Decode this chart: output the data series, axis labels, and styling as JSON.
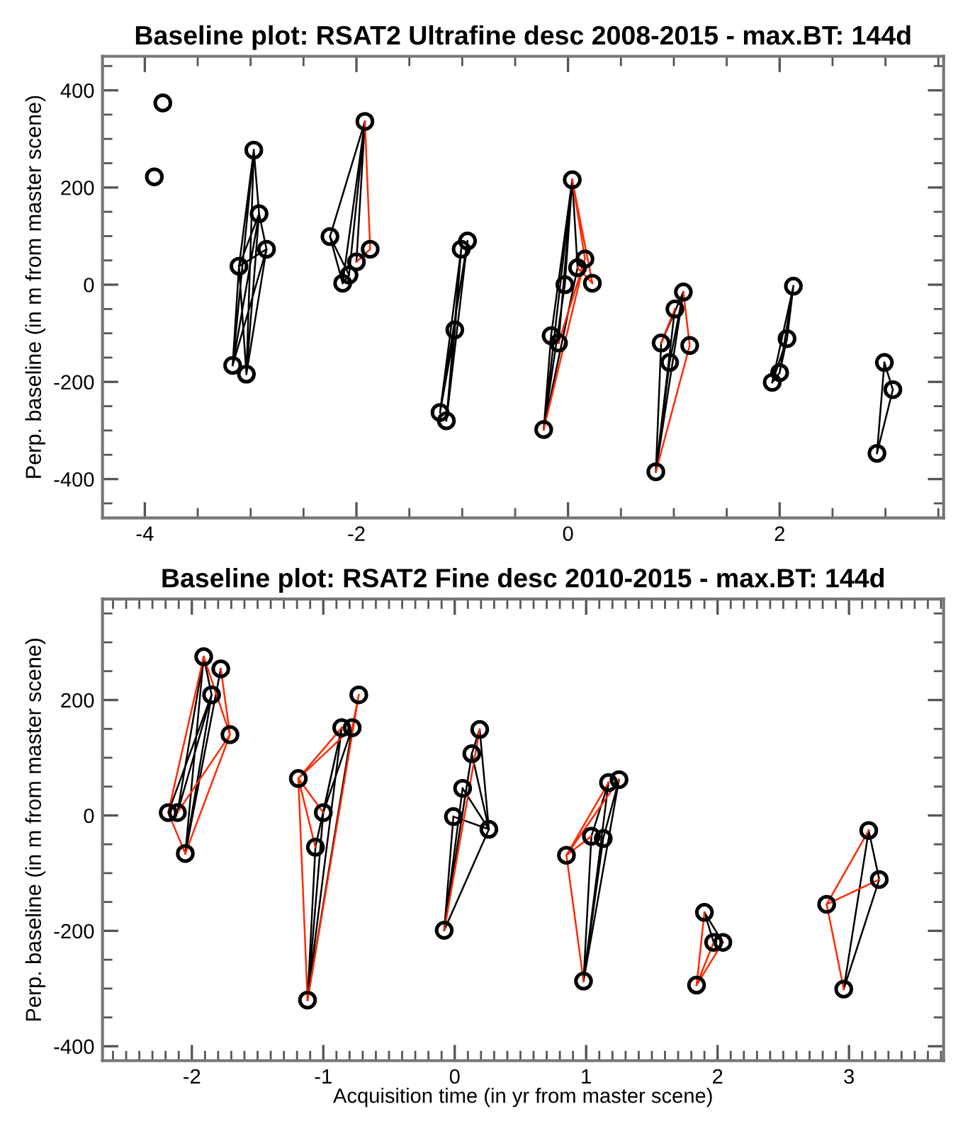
{
  "chart_data": [
    {
      "type": "scatter",
      "title": "Baseline plot: RSAT2 Ultrafine desc 2008-2015 - max.BT: 144d",
      "ylabel": "Perp. baseline (in m from master scene)",
      "grid": false,
      "legend": false,
      "xlim": [
        -4.4,
        3.55
      ],
      "ylim": [
        -480,
        470
      ],
      "xticks": [
        -4,
        {
          "value": -3.5,
          "label": null
        },
        {
          "value": -3,
          "label": null
        },
        {
          "value": -2.5,
          "label": null
        },
        -2,
        {
          "value": -1.5,
          "label": null
        },
        {
          "value": -1,
          "label": null
        },
        {
          "value": -0.5,
          "label": null
        },
        0,
        {
          "value": 0.5,
          "label": null
        },
        {
          "value": 1,
          "label": null
        },
        {
          "value": 1.5,
          "label": null
        },
        2,
        {
          "value": 2.5,
          "label": null
        },
        {
          "value": 3,
          "label": null
        },
        {
          "value": 3.5,
          "label": null
        }
      ],
      "yticks": [
        {
          "value": -450,
          "label": null
        },
        -400,
        {
          "value": -350,
          "label": null
        },
        {
          "value": -300,
          "label": null
        },
        {
          "value": -250,
          "label": null
        },
        -200,
        {
          "value": -150,
          "label": null
        },
        {
          "value": -100,
          "label": null
        },
        {
          "value": -50,
          "label": null
        },
        0,
        {
          "value": 50,
          "label": null
        },
        {
          "value": 100,
          "label": null
        },
        {
          "value": 150,
          "label": null
        },
        200,
        {
          "value": 250,
          "label": null
        },
        {
          "value": 300,
          "label": null
        },
        {
          "value": 350,
          "label": null
        },
        400,
        {
          "value": 450,
          "label": null
        }
      ],
      "series": [
        {
          "type": "line",
          "color": "#000000",
          "x": [
            -3.17,
            -2.97,
            null,
            -3.17,
            -2.92,
            null,
            -3.17,
            -2.85,
            null,
            -3.04,
            -2.97,
            null,
            -3.04,
            -2.92,
            null,
            -3.04,
            -2.85,
            null,
            -3.11,
            -2.97,
            null,
            -3.11,
            -2.92,
            null,
            -3.11,
            -2.85,
            null,
            -2.97,
            -2.92,
            null,
            -2.92,
            -2.85,
            null,
            -3.11,
            -3.17,
            null,
            -3.11,
            -3.04,
            null,
            -1.92,
            -2.25,
            null,
            -1.92,
            -2.0,
            null,
            -1.92,
            -2.07,
            null,
            -1.92,
            -2.13,
            null,
            -2.25,
            -2.07,
            null,
            -2.25,
            -2.13,
            null,
            -2.07,
            -2.13,
            null,
            -1.21,
            -1.07,
            null,
            -1.21,
            -1.01,
            null,
            -1.21,
            -0.95,
            null,
            -1.15,
            -1.07,
            null,
            -1.15,
            -1.01,
            null,
            -1.15,
            -0.95,
            null,
            -1.07,
            -1.01,
            null,
            -0.23,
            0.04,
            null,
            -0.23,
            -0.03,
            null,
            -0.23,
            0.09,
            null,
            -0.23,
            -0.16,
            null,
            -0.16,
            0.04,
            null,
            -0.09,
            0.04,
            null,
            -0.03,
            0.04,
            null,
            0.09,
            0.04,
            null,
            -0.16,
            -0.09,
            null,
            0.83,
            1.09,
            null,
            0.83,
            1.01,
            null,
            0.83,
            0.88,
            null,
            0.83,
            0.96,
            null,
            0.88,
            1.09,
            null,
            0.96,
            1.09,
            null,
            2.13,
            2.07,
            null,
            2.13,
            2.0,
            null,
            2.13,
            1.93,
            null,
            2.07,
            2.0,
            null,
            2.07,
            1.93,
            null,
            2.0,
            1.93,
            null,
            2.99,
            2.92,
            null,
            3.07,
            2.92,
            null,
            2.99,
            3.07
          ],
          "values": [
            -166,
            277,
            null,
            -166,
            146,
            null,
            -166,
            73,
            null,
            -184,
            277,
            null,
            -184,
            146,
            null,
            -184,
            73,
            null,
            38,
            277,
            null,
            38,
            146,
            null,
            38,
            73,
            null,
            277,
            146,
            null,
            146,
            73,
            null,
            38,
            -166,
            null,
            38,
            -184,
            null,
            336,
            99,
            null,
            336,
            47,
            null,
            336,
            20,
            null,
            336,
            3,
            null,
            99,
            20,
            null,
            99,
            3,
            null,
            20,
            3,
            null,
            -263,
            -93,
            null,
            -263,
            73,
            null,
            -263,
            90,
            null,
            -280,
            -93,
            null,
            -280,
            73,
            null,
            -280,
            90,
            null,
            -93,
            73,
            null,
            -298,
            216,
            null,
            -298,
            0,
            null,
            -298,
            35,
            null,
            -298,
            -105,
            null,
            -105,
            216,
            null,
            -120,
            216,
            null,
            0,
            216,
            null,
            35,
            216,
            null,
            -105,
            -120,
            null,
            -385,
            -15,
            null,
            -385,
            -50,
            null,
            -385,
            -120,
            null,
            -385,
            -160,
            null,
            -120,
            -15,
            null,
            -160,
            -15,
            null,
            -3,
            -111,
            null,
            -3,
            -181,
            null,
            -3,
            -201,
            null,
            -111,
            -181,
            null,
            -111,
            -201,
            null,
            -181,
            -201,
            null,
            -160,
            -347,
            null,
            -216,
            -347,
            null,
            -160,
            -216
          ]
        },
        {
          "type": "line",
          "color": "#ff2a00",
          "x": [
            -1.92,
            -1.87,
            -2.0,
            null,
            0.04,
            0.16,
            null,
            0.04,
            0.23,
            null,
            -0.23,
            0.16,
            null,
            0.09,
            0.23,
            null,
            -0.09,
            0.16,
            null,
            0.83,
            1.15,
            1.09,
            null,
            1.01,
            0.88
          ],
          "values": [
            336,
            73,
            47,
            null,
            216,
            53,
            null,
            216,
            3,
            null,
            -298,
            53,
            null,
            35,
            3,
            null,
            -120,
            53,
            null,
            -385,
            -125,
            -15,
            null,
            -50,
            -120
          ]
        },
        {
          "marker": "circle",
          "color": "#000000",
          "x": [
            -3.83,
            -3.91,
            -2.97,
            -2.92,
            -2.85,
            -3.11,
            -3.17,
            -3.04,
            -1.92,
            -2.25,
            -1.87,
            -2.0,
            -2.07,
            -2.13,
            -1.21,
            -1.15,
            -1.07,
            -1.01,
            -0.95,
            0.04,
            -0.23,
            -0.03,
            -0.16,
            -0.09,
            0.09,
            0.16,
            0.23,
            1.09,
            1.01,
            0.88,
            0.96,
            1.15,
            0.83,
            2.13,
            2.07,
            2.0,
            1.93,
            2.99,
            3.07,
            2.92
          ],
          "values": [
            374,
            222,
            277,
            146,
            73,
            38,
            -166,
            -184,
            336,
            99,
            73,
            47,
            20,
            3,
            -263,
            -280,
            -93,
            73,
            90,
            216,
            -298,
            0,
            -105,
            -120,
            35,
            53,
            3,
            -15,
            -50,
            -120,
            -160,
            -125,
            -385,
            -3,
            -111,
            -181,
            -201,
            -160,
            -216,
            -347
          ]
        }
      ]
    },
    {
      "type": "scatter",
      "title": "Baseline plot: RSAT2 Fine desc 2010-2015 - max.BT: 144d",
      "xlabel": "Acquisition time (in yr from master scene)",
      "ylabel": "Perp. baseline (in m from master scene)",
      "grid": false,
      "legend": false,
      "xlim": [
        -2.68,
        3.72
      ],
      "ylim": [
        -425,
        375
      ],
      "xticks": [
        {
          "value": -2.6,
          "label": null
        },
        {
          "value": -2.5,
          "label": null
        },
        {
          "value": -2.4,
          "label": null
        },
        {
          "value": -2.3,
          "label": null
        },
        {
          "value": -2.2,
          "label": null
        },
        {
          "value": -2.1,
          "label": null
        },
        -2,
        {
          "value": -1.9,
          "label": null
        },
        {
          "value": -1.8,
          "label": null
        },
        {
          "value": -1.7,
          "label": null
        },
        {
          "value": -1.6,
          "label": null
        },
        {
          "value": -1.5,
          "label": null
        },
        {
          "value": -1.4,
          "label": null
        },
        {
          "value": -1.3,
          "label": null
        },
        {
          "value": -1.2,
          "label": null
        },
        {
          "value": -1.1,
          "label": null
        },
        -1,
        {
          "value": -0.9,
          "label": null
        },
        {
          "value": -0.8,
          "label": null
        },
        {
          "value": -0.7,
          "label": null
        },
        {
          "value": -0.6,
          "label": null
        },
        {
          "value": -0.5,
          "label": null
        },
        {
          "value": -0.4,
          "label": null
        },
        {
          "value": -0.3,
          "label": null
        },
        {
          "value": -0.2,
          "label": null
        },
        {
          "value": -0.1,
          "label": null
        },
        0,
        {
          "value": 0.1,
          "label": null
        },
        {
          "value": 0.2,
          "label": null
        },
        {
          "value": 0.3,
          "label": null
        },
        {
          "value": 0.4,
          "label": null
        },
        {
          "value": 0.5,
          "label": null
        },
        {
          "value": 0.6,
          "label": null
        },
        {
          "value": 0.7,
          "label": null
        },
        {
          "value": 0.8,
          "label": null
        },
        {
          "value": 0.9,
          "label": null
        },
        1,
        {
          "value": 1.1,
          "label": null
        },
        {
          "value": 1.2,
          "label": null
        },
        {
          "value": 1.3,
          "label": null
        },
        {
          "value": 1.4,
          "label": null
        },
        {
          "value": 1.5,
          "label": null
        },
        {
          "value": 1.6,
          "label": null
        },
        {
          "value": 1.7,
          "label": null
        },
        {
          "value": 1.8,
          "label": null
        },
        {
          "value": 1.9,
          "label": null
        },
        2,
        {
          "value": 2.1,
          "label": null
        },
        {
          "value": 2.2,
          "label": null
        },
        {
          "value": 2.3,
          "label": null
        },
        {
          "value": 2.4,
          "label": null
        },
        {
          "value": 2.5,
          "label": null
        },
        {
          "value": 2.6,
          "label": null
        },
        {
          "value": 2.7,
          "label": null
        },
        {
          "value": 2.8,
          "label": null
        },
        {
          "value": 2.9,
          "label": null
        },
        3,
        {
          "value": 3.1,
          "label": null
        },
        {
          "value": 3.2,
          "label": null
        },
        {
          "value": 3.3,
          "label": null
        },
        {
          "value": 3.4,
          "label": null
        },
        {
          "value": 3.5,
          "label": null
        },
        {
          "value": 3.6,
          "label": null
        },
        {
          "value": 3.7,
          "label": null
        }
      ],
      "yticks": [
        -400,
        {
          "value": -350,
          "label": null
        },
        {
          "value": -300,
          "label": null
        },
        {
          "value": -250,
          "label": null
        },
        -200,
        {
          "value": -150,
          "label": null
        },
        {
          "value": -100,
          "label": null
        },
        {
          "value": -50,
          "label": null
        },
        0,
        {
          "value": 50,
          "label": null
        },
        {
          "value": 100,
          "label": null
        },
        {
          "value": 150,
          "label": null
        },
        200,
        {
          "value": 250,
          "label": null
        },
        {
          "value": 300,
          "label": null
        },
        {
          "value": 350,
          "label": null
        }
      ],
      "series": [
        {
          "type": "line",
          "color": "#000000",
          "x": [
            -2.05,
            -1.91,
            null,
            -2.05,
            -1.78,
            null,
            -2.05,
            -1.85,
            null,
            -2.11,
            -1.91,
            null,
            -2.11,
            -1.85,
            null,
            -2.18,
            -1.85,
            null,
            -1.91,
            -1.85,
            null,
            -1.12,
            -0.86,
            null,
            -1.12,
            -0.78,
            null,
            -1.12,
            -1.0,
            null,
            -1.12,
            -1.06,
            null,
            -1.0,
            -0.86,
            null,
            -1.0,
            -0.78,
            null,
            -1.06,
            -0.86,
            null,
            -0.08,
            0.13,
            null,
            -0.08,
            0.06,
            null,
            -0.08,
            -0.01,
            null,
            -0.08,
            0.26,
            null,
            0.19,
            0.26,
            null,
            0.13,
            0.26,
            null,
            -0.01,
            0.26,
            null,
            0.06,
            0.26,
            null,
            0.19,
            0.13,
            null,
            0.98,
            1.17,
            null,
            0.98,
            1.25,
            null,
            0.98,
            1.04,
            null,
            0.98,
            1.13,
            null,
            1.04,
            1.17,
            null,
            1.13,
            1.25,
            null,
            1.9,
            1.97,
            null,
            1.9,
            2.04,
            null,
            2.96,
            3.15,
            null,
            2.96,
            3.23,
            null,
            3.15,
            3.23
          ],
          "values": [
            -66,
            275,
            null,
            -66,
            254,
            null,
            -66,
            209,
            null,
            5,
            275,
            null,
            5,
            209,
            null,
            5,
            209,
            null,
            275,
            209,
            null,
            -320,
            152,
            null,
            -320,
            152,
            null,
            -320,
            5,
            null,
            -320,
            -55,
            null,
            5,
            152,
            null,
            5,
            152,
            null,
            -55,
            152,
            null,
            -199,
            107,
            null,
            -199,
            47,
            null,
            -199,
            -2,
            null,
            -199,
            -24,
            null,
            149,
            -24,
            null,
            107,
            -24,
            null,
            -2,
            -24,
            null,
            47,
            -24,
            null,
            149,
            107,
            null,
            -287,
            57,
            null,
            -287,
            62,
            null,
            -287,
            -36,
            null,
            -287,
            -40,
            null,
            -36,
            57,
            null,
            -40,
            62,
            null,
            -168,
            -220,
            null,
            -168,
            -220,
            null,
            -301,
            -26,
            null,
            -301,
            -111,
            null,
            -26,
            -111
          ]
        },
        {
          "type": "line",
          "color": "#ff2a00",
          "x": [
            -2.18,
            -1.91,
            null,
            -2.18,
            -2.05,
            null,
            -2.05,
            -1.71,
            null,
            -2.11,
            -1.71,
            null,
            -1.78,
            -1.71,
            null,
            -1.91,
            -1.71,
            null,
            -1.19,
            -0.86,
            null,
            -1.19,
            -0.78,
            null,
            -1.19,
            -1.06,
            null,
            -1.19,
            -1.0,
            null,
            -1.19,
            -1.12,
            null,
            -1.12,
            -0.73,
            null,
            -0.78,
            -0.73,
            null,
            -0.08,
            0.19,
            null,
            0.85,
            1.17,
            null,
            0.85,
            1.25,
            null,
            0.85,
            1.04,
            null,
            0.85,
            0.98,
            null,
            1.84,
            1.9,
            null,
            1.84,
            1.97,
            null,
            1.84,
            2.04,
            null,
            2.83,
            3.15,
            null,
            2.83,
            3.23,
            null,
            2.83,
            2.96
          ],
          "values": [
            5,
            275,
            null,
            5,
            -66,
            null,
            -66,
            140,
            null,
            5,
            140,
            null,
            254,
            140,
            null,
            275,
            140,
            null,
            64,
            152,
            null,
            64,
            152,
            null,
            64,
            -55,
            null,
            64,
            5,
            null,
            64,
            -320,
            null,
            -320,
            209,
            null,
            152,
            209,
            null,
            -199,
            149,
            null,
            -69,
            57,
            null,
            -69,
            62,
            null,
            -69,
            -36,
            null,
            -69,
            -287,
            null,
            -294,
            -168,
            null,
            -294,
            -220,
            null,
            -294,
            -220,
            null,
            -154,
            -26,
            null,
            -154,
            -111,
            null,
            -154,
            -301
          ]
        },
        {
          "marker": "circle",
          "color": "#000000",
          "x": [
            -1.91,
            -1.78,
            -1.85,
            -1.71,
            -2.18,
            -2.11,
            -2.05,
            -0.73,
            -0.86,
            -0.78,
            -1.19,
            -1.0,
            -1.06,
            -1.12,
            0.19,
            0.13,
            0.06,
            -0.01,
            0.26,
            -0.08,
            1.17,
            1.25,
            1.04,
            1.13,
            0.85,
            0.98,
            1.9,
            1.97,
            2.04,
            1.84,
            3.15,
            3.23,
            2.83,
            2.96
          ],
          "values": [
            275,
            254,
            209,
            140,
            5,
            5,
            -66,
            209,
            152,
            152,
            64,
            5,
            -55,
            -320,
            149,
            107,
            47,
            -2,
            -24,
            -199,
            57,
            62,
            -36,
            -40,
            -69,
            -287,
            -168,
            -220,
            -220,
            -294,
            -26,
            -111,
            -154,
            -301
          ]
        }
      ]
    }
  ]
}
